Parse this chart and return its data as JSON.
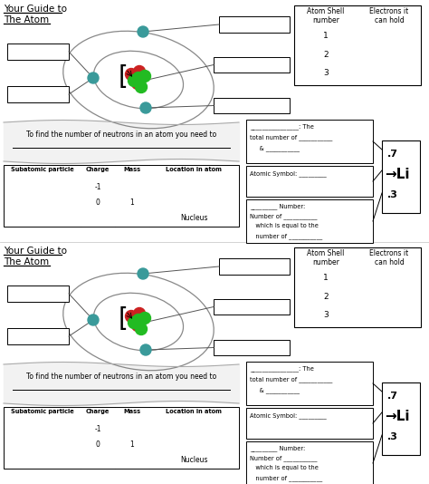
{
  "bg_color": "#ffffff",
  "shell_table_headers": [
    "Atom Shell\nnumber",
    "Electrons it\ncan hold"
  ],
  "shell_rows": [
    "1",
    "2",
    "3"
  ],
  "subatomic_headers": [
    "Subatomic particle",
    "Charge",
    "Mass",
    "Location in atom"
  ],
  "subatomic_rows": [
    [
      "",
      "-1",
      "",
      ""
    ],
    [
      "",
      "0",
      "1",
      ""
    ],
    [
      "",
      "",
      "",
      "Nucleus"
    ]
  ],
  "neutron_text": "To find the number of neutrons in an atom you need to",
  "mass_line1": "________________: The",
  "mass_line2": "total number of ___________",
  "mass_line3": "     & ___________",
  "symbol_line1": "Atomic Symbol: _________",
  "number_line1": "_________ Number:",
  "number_line2": "Number of ___________",
  "number_line3": "   which is equal to the",
  "number_line4": "   number of ___________",
  "li_super": ".7",
  "li_label": "→Li",
  "li_sub": ".3",
  "electron_color": "#3a9a9a",
  "proton_color": "#cc2222",
  "neutron_color": "#22bb22",
  "line_color": "#555555"
}
